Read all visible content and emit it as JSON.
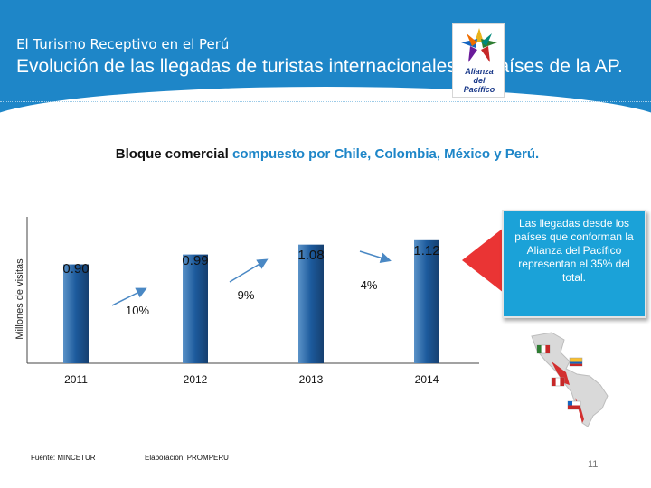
{
  "header": {
    "subtitle": "El Turismo Receptivo en el Perú",
    "title": "Evolución de las llegadas de turistas internacionales de países de la AP."
  },
  "logo": {
    "line1": "Alianza",
    "line2": "del",
    "line3": "Pacífico"
  },
  "subheading": {
    "part1": "Bloque comercial ",
    "part2": "compuesto por Chile, Colombia, México y Perú."
  },
  "chart_data": {
    "type": "bar",
    "categories": [
      "2011",
      "2012",
      "2013",
      "2014"
    ],
    "values": [
      0.9,
      0.99,
      1.08,
      1.12
    ],
    "value_labels": [
      "0.90",
      "0.99",
      "1.08",
      "1.12"
    ],
    "growth_labels": [
      "10%",
      "9%",
      "4%"
    ],
    "ylabel": "Millones de visitas",
    "xlabel": "",
    "title": "",
    "ylim": [
      0,
      1.25
    ],
    "colors": {
      "bar": "#1c5a9c",
      "bar_edge": "#5a92c8",
      "arrow": "#4a88c4"
    }
  },
  "callout": {
    "text": "Las llegadas desde los países que conforman la Alianza del Pacífico representan el 35% del total.",
    "arrow_color": "#ea3434",
    "background": "#1ba2d8"
  },
  "map": {
    "icon": "americas-map-with-flags-icon"
  },
  "footer": {
    "source": "Fuente: MINCETUR",
    "elaboration": "Elaboración: PROMPERU",
    "page_number": "11"
  }
}
